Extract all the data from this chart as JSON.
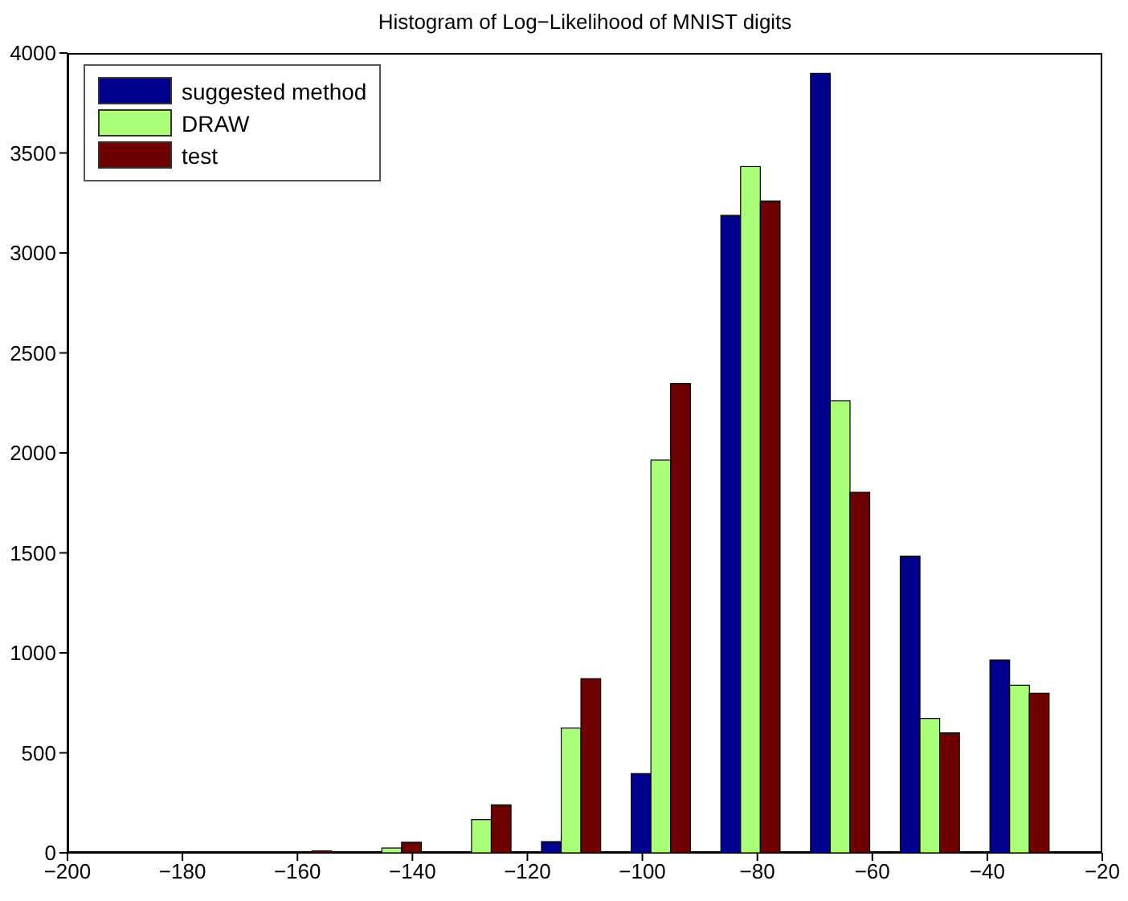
{
  "chart_data": {
    "type": "histogram",
    "title": "Histogram of Log−Likelihood of MNIST digits",
    "bins": [
      -182.6,
      -167.0,
      -151.4,
      -135.8,
      -120.2,
      -104.6,
      -89.0,
      -73.4,
      -57.8,
      -42.2,
      -26.6
    ],
    "series": [
      {
        "name": "suggested method",
        "color": "#00008f",
        "values": [
          0,
          0,
          0,
          5,
          56,
          396,
          3188,
          3898,
          1484,
          964
        ]
      },
      {
        "name": "DRAW",
        "color": "#aaff77",
        "values": [
          0,
          3,
          24,
          166,
          624,
          1964,
          3432,
          2261,
          672,
          838
        ]
      },
      {
        "name": "test",
        "color": "#6f0000",
        "values": [
          3,
          10,
          53,
          240,
          871,
          2347,
          3260,
          1803,
          600,
          798
        ]
      }
    ],
    "xlim": [
      -200,
      -20
    ],
    "xticks": [
      -200,
      -180,
      -160,
      -140,
      -120,
      -100,
      -80,
      -60,
      -40,
      -20
    ],
    "ylim": [
      0,
      4000
    ],
    "yticks": [
      0,
      500,
      1000,
      1500,
      2000,
      2500,
      3000,
      3500,
      4000
    ],
    "legend": "top left"
  }
}
